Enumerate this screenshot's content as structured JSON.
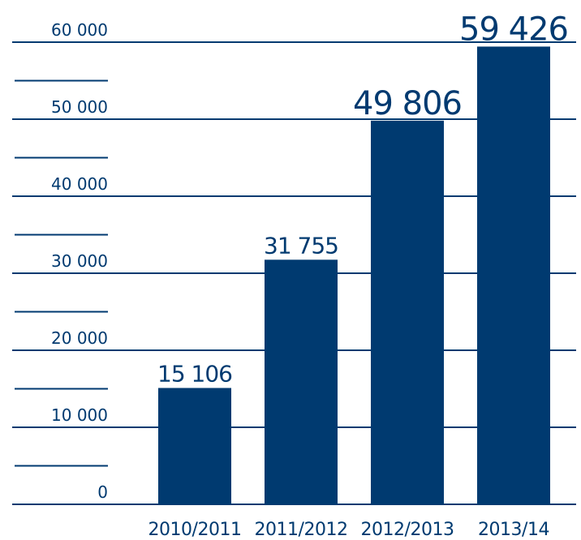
{
  "chart_data": {
    "type": "bar",
    "categories": [
      "2010/2011",
      "2011/2012",
      "2012/2013",
      "2013/14"
    ],
    "values": [
      15106,
      31755,
      49806,
      59426
    ],
    "value_labels": [
      "15 106",
      "31 755",
      "49 806",
      "59 426"
    ],
    "color": "#003a70",
    "ylim": [
      0,
      60000
    ],
    "yticks": [
      0,
      {
        "value": 10000,
        "label": "10 000"
      },
      {
        "value": 20000,
        "label": "20 000"
      },
      {
        "value": 30000,
        "label": "30 000"
      },
      {
        "value": 40000,
        "label": "40 000"
      },
      {
        "value": 50000,
        "label": "50 000"
      },
      {
        "value": 60000,
        "label": "60 000"
      }
    ],
    "minor_yticks": [
      5000,
      15000,
      25000,
      35000,
      45000,
      55000
    ],
    "grid": true
  }
}
